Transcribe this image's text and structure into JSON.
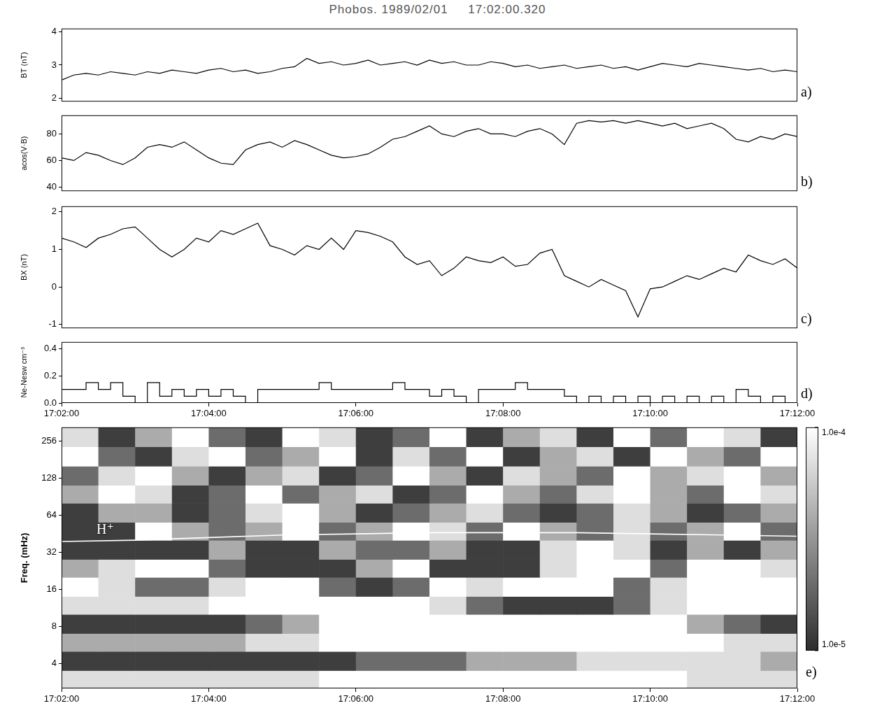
{
  "title": "Phobos. 1989/02/01     17:02:00.320",
  "chart_data": [
    {
      "type": "line",
      "panel": "a)",
      "ylabel": "BT (nT)",
      "color": "#000000",
      "tick_labels": "y",
      "xlim": [
        "17:02:00",
        "17:12:00"
      ],
      "ylim": [
        1.9,
        4.1
      ],
      "yticks": [
        2,
        3,
        4
      ],
      "x": [
        "17:02:00",
        "17:02:10",
        "17:02:20",
        "17:02:30",
        "17:02:40",
        "17:02:50",
        "17:03:00",
        "17:03:10",
        "17:03:20",
        "17:03:30",
        "17:03:40",
        "17:03:50",
        "17:04:00",
        "17:04:10",
        "17:04:20",
        "17:04:30",
        "17:04:40",
        "17:04:50",
        "17:05:00",
        "17:05:10",
        "17:05:20",
        "17:05:30",
        "17:05:40",
        "17:05:50",
        "17:06:00",
        "17:06:10",
        "17:06:20",
        "17:06:30",
        "17:06:40",
        "17:06:50",
        "17:07:00",
        "17:07:10",
        "17:07:20",
        "17:07:30",
        "17:07:40",
        "17:07:50",
        "17:08:00",
        "17:08:10",
        "17:08:20",
        "17:08:30",
        "17:08:40",
        "17:08:50",
        "17:09:00",
        "17:09:10",
        "17:09:20",
        "17:09:30",
        "17:09:40",
        "17:09:50",
        "17:10:00",
        "17:10:10",
        "17:10:20",
        "17:10:30",
        "17:10:40",
        "17:10:50",
        "17:11:00",
        "17:11:10",
        "17:11:20",
        "17:11:30",
        "17:11:40",
        "17:11:50",
        "17:12:00"
      ],
      "values": [
        2.55,
        2.7,
        2.75,
        2.7,
        2.8,
        2.75,
        2.7,
        2.8,
        2.75,
        2.85,
        2.8,
        2.75,
        2.85,
        2.9,
        2.8,
        2.85,
        2.75,
        2.8,
        2.9,
        2.95,
        3.2,
        3.05,
        3.1,
        3.0,
        3.05,
        3.15,
        3.0,
        3.05,
        3.1,
        3.0,
        3.15,
        3.05,
        3.1,
        3.0,
        3.0,
        3.1,
        3.05,
        2.95,
        3.0,
        2.9,
        2.95,
        3.0,
        2.9,
        2.95,
        3.0,
        2.9,
        2.95,
        2.85,
        2.95,
        3.05,
        3.0,
        2.95,
        3.05,
        3.0,
        2.95,
        2.9,
        2.85,
        2.9,
        2.8,
        2.85,
        2.8
      ]
    },
    {
      "type": "line",
      "panel": "b)",
      "ylabel": "acos(V·B)",
      "color": "#000000",
      "tick_labels": "y",
      "xlim": [
        "17:02:00",
        "17:12:00"
      ],
      "ylim": [
        37,
        94
      ],
      "yticks": [
        40,
        60,
        80
      ],
      "x": [
        "17:02:00",
        "17:02:10",
        "17:02:20",
        "17:02:30",
        "17:02:40",
        "17:02:50",
        "17:03:00",
        "17:03:10",
        "17:03:20",
        "17:03:30",
        "17:03:40",
        "17:03:50",
        "17:04:00",
        "17:04:10",
        "17:04:20",
        "17:04:30",
        "17:04:40",
        "17:04:50",
        "17:05:00",
        "17:05:10",
        "17:05:20",
        "17:05:30",
        "17:05:40",
        "17:05:50",
        "17:06:00",
        "17:06:10",
        "17:06:20",
        "17:06:30",
        "17:06:40",
        "17:06:50",
        "17:07:00",
        "17:07:10",
        "17:07:20",
        "17:07:30",
        "17:07:40",
        "17:07:50",
        "17:08:00",
        "17:08:10",
        "17:08:20",
        "17:08:30",
        "17:08:40",
        "17:08:50",
        "17:09:00",
        "17:09:10",
        "17:09:20",
        "17:09:30",
        "17:09:40",
        "17:09:50",
        "17:10:00",
        "17:10:10",
        "17:10:20",
        "17:10:30",
        "17:10:40",
        "17:10:50",
        "17:11:00",
        "17:11:10",
        "17:11:20",
        "17:11:30",
        "17:11:40",
        "17:11:50",
        "17:12:00"
      ],
      "values": [
        62,
        60,
        66,
        64,
        60,
        57,
        62,
        70,
        72,
        70,
        74,
        68,
        62,
        58,
        57,
        68,
        72,
        74,
        70,
        75,
        72,
        68,
        64,
        62,
        63,
        65,
        70,
        76,
        78,
        82,
        86,
        80,
        78,
        82,
        84,
        80,
        80,
        78,
        82,
        84,
        80,
        72,
        88,
        90,
        89,
        90,
        88,
        90,
        88,
        86,
        88,
        84,
        86,
        88,
        84,
        76,
        74,
        78,
        76,
        80,
        78
      ]
    },
    {
      "type": "line",
      "panel": "c)",
      "ylabel": "BX (nT)",
      "color": "#000000",
      "tick_labels": "y",
      "xlim": [
        "17:02:00",
        "17:12:00"
      ],
      "ylim": [
        -1.1,
        2.15
      ],
      "yticks": [
        -1,
        0,
        1,
        2
      ],
      "x": [
        "17:02:00",
        "17:02:10",
        "17:02:20",
        "17:02:30",
        "17:02:40",
        "17:02:50",
        "17:03:00",
        "17:03:10",
        "17:03:20",
        "17:03:30",
        "17:03:40",
        "17:03:50",
        "17:04:00",
        "17:04:10",
        "17:04:20",
        "17:04:30",
        "17:04:40",
        "17:04:50",
        "17:05:00",
        "17:05:10",
        "17:05:20",
        "17:05:30",
        "17:05:40",
        "17:05:50",
        "17:06:00",
        "17:06:10",
        "17:06:20",
        "17:06:30",
        "17:06:40",
        "17:06:50",
        "17:07:00",
        "17:07:10",
        "17:07:20",
        "17:07:30",
        "17:07:40",
        "17:07:50",
        "17:08:00",
        "17:08:10",
        "17:08:20",
        "17:08:30",
        "17:08:40",
        "17:08:50",
        "17:09:00",
        "17:09:10",
        "17:09:20",
        "17:09:30",
        "17:09:40",
        "17:09:50",
        "17:10:00",
        "17:10:10",
        "17:10:20",
        "17:10:30",
        "17:10:40",
        "17:10:50",
        "17:11:00",
        "17:11:10",
        "17:11:20",
        "17:11:30",
        "17:11:40",
        "17:11:50",
        "17:12:00"
      ],
      "values": [
        1.3,
        1.2,
        1.05,
        1.3,
        1.4,
        1.55,
        1.6,
        1.3,
        1.0,
        0.8,
        1.0,
        1.3,
        1.2,
        1.5,
        1.4,
        1.55,
        1.7,
        1.1,
        1.0,
        0.85,
        1.1,
        1.0,
        1.3,
        1.0,
        1.5,
        1.45,
        1.35,
        1.2,
        0.8,
        0.6,
        0.7,
        0.3,
        0.5,
        0.8,
        0.7,
        0.65,
        0.8,
        0.55,
        0.6,
        0.9,
        1.0,
        0.3,
        0.15,
        0.0,
        0.2,
        0.05,
        -0.1,
        -0.8,
        -0.05,
        0.0,
        0.15,
        0.3,
        0.2,
        0.35,
        0.5,
        0.4,
        0.85,
        0.7,
        0.6,
        0.75,
        0.5
      ]
    },
    {
      "type": "line",
      "panel": "d)",
      "ylabel": "Ne-Nesw cm⁻³",
      "color": "#000000",
      "line_style": "stepped",
      "xlim": [
        "17:02:00",
        "17:12:00"
      ],
      "ylim": [
        0,
        0.45
      ],
      "yticks": [
        {
          "value": 0,
          "label": "0.0"
        },
        {
          "value": 0.2,
          "label": "0.2"
        },
        {
          "value": 0.4,
          "label": "0.4"
        }
      ],
      "xticks": [
        "17:02:00",
        "17:04:00",
        "17:06:00",
        "17:08:00",
        "17:10:00",
        "17:12:00"
      ],
      "x": [
        "17:02:00",
        "17:02:10",
        "17:02:20",
        "17:02:30",
        "17:02:40",
        "17:02:50",
        "17:03:00",
        "17:03:10",
        "17:03:20",
        "17:03:30",
        "17:03:40",
        "17:03:50",
        "17:04:00",
        "17:04:10",
        "17:04:20",
        "17:04:30",
        "17:04:40",
        "17:04:50",
        "17:05:00",
        "17:05:10",
        "17:05:20",
        "17:05:30",
        "17:05:40",
        "17:05:50",
        "17:06:00",
        "17:06:10",
        "17:06:20",
        "17:06:30",
        "17:06:40",
        "17:06:50",
        "17:07:00",
        "17:07:10",
        "17:07:20",
        "17:07:30",
        "17:07:40",
        "17:07:50",
        "17:08:00",
        "17:08:10",
        "17:08:20",
        "17:08:30",
        "17:08:40",
        "17:08:50",
        "17:09:00",
        "17:09:10",
        "17:09:20",
        "17:09:30",
        "17:09:40",
        "17:09:50",
        "17:10:00",
        "17:10:10",
        "17:10:20",
        "17:10:30",
        "17:10:40",
        "17:10:50",
        "17:11:00",
        "17:11:10",
        "17:11:20",
        "17:11:30",
        "17:11:40",
        "17:11:50",
        "17:12:00"
      ],
      "values": [
        0.1,
        0.1,
        0.15,
        0.1,
        0.15,
        0.05,
        0.0,
        0.15,
        0.05,
        0.1,
        0.05,
        0.1,
        0.05,
        0.1,
        0.05,
        0.0,
        0.1,
        0.1,
        0.1,
        0.1,
        0.1,
        0.15,
        0.1,
        0.1,
        0.1,
        0.1,
        0.1,
        0.15,
        0.1,
        0.1,
        0.05,
        0.1,
        0.05,
        0.0,
        0.1,
        0.1,
        0.1,
        0.15,
        0.1,
        0.1,
        0.1,
        0.05,
        0.0,
        0.05,
        0.0,
        0.05,
        0.0,
        0.05,
        0.0,
        0.05,
        0.0,
        0.05,
        0.0,
        0.05,
        0.0,
        0.1,
        0.05,
        0.0,
        0.05,
        0.0,
        0.05
      ]
    },
    {
      "type": "heatmap",
      "panel": "e)",
      "ylabel": "Freq. (mHz)",
      "log": "y",
      "xlim": [
        "17:02:00",
        "17:12:00"
      ],
      "xticks": [
        "17:02:00",
        "17:04:00",
        "17:06:00",
        "17:08:00",
        "17:10:00",
        "17:12:00"
      ],
      "ylim": [
        2.5,
        330
      ],
      "yticks": [
        4,
        8,
        16,
        32,
        64,
        128,
        256
      ],
      "x_edges": [
        "17:02:00",
        "17:02:30",
        "17:03:00",
        "17:03:30",
        "17:04:00",
        "17:04:30",
        "17:05:00",
        "17:05:30",
        "17:06:00",
        "17:06:30",
        "17:07:00",
        "17:07:30",
        "17:08:00",
        "17:08:30",
        "17:09:00",
        "17:09:30",
        "17:10:00",
        "17:10:30",
        "17:11:00",
        "17:11:30",
        "17:12:00"
      ],
      "y_edges": [
        2.5,
        3.5,
        5,
        7,
        10,
        14,
        20,
        28,
        40,
        56,
        80,
        112,
        160,
        230,
        330
      ],
      "cells": [
        [
          7e-05,
          7e-05,
          7e-05,
          7e-05,
          7e-05,
          7e-05,
          7e-05,
          0.0001,
          0.0001,
          0.0001,
          0.0001,
          0.0001,
          0.0001,
          0.0001,
          0.0001,
          0.0001,
          0.0001,
          7e-05,
          7e-05,
          7e-05
        ],
        [
          1.2e-05,
          1.2e-05,
          1.2e-05,
          1.2e-05,
          1.2e-05,
          1.2e-05,
          1.2e-05,
          1.2e-05,
          2e-05,
          2e-05,
          2e-05,
          4e-05,
          4e-05,
          4e-05,
          7e-05,
          7e-05,
          7e-05,
          7e-05,
          7e-05,
          4e-05
        ],
        [
          4e-05,
          4e-05,
          4e-05,
          4e-05,
          4e-05,
          7e-05,
          7e-05,
          0.0001,
          0.0001,
          0.0001,
          0.0001,
          0.0001,
          0.0001,
          0.0001,
          0.0001,
          0.0001,
          0.0001,
          0.0001,
          7e-05,
          7e-05
        ],
        [
          1.2e-05,
          1.2e-05,
          1.2e-05,
          1.2e-05,
          1.2e-05,
          2e-05,
          4e-05,
          0.0001,
          0.0001,
          0.0001,
          0.0001,
          0.0001,
          0.0001,
          0.0001,
          0.0001,
          0.0001,
          0.0001,
          4e-05,
          2e-05,
          1.2e-05
        ],
        [
          7e-05,
          7e-05,
          7e-05,
          7e-05,
          0.0001,
          0.0001,
          0.0001,
          0.0001,
          0.0001,
          0.0001,
          7e-05,
          2e-05,
          1.2e-05,
          1.2e-05,
          1.2e-05,
          2e-05,
          7e-05,
          0.0001,
          0.0001,
          0.0001
        ],
        [
          0.0001,
          7e-05,
          2e-05,
          2e-05,
          7e-05,
          0.0001,
          0.0001,
          2e-05,
          1.2e-05,
          2e-05,
          0.0001,
          7e-05,
          0.0001,
          0.0001,
          0.0001,
          2e-05,
          7e-05,
          0.0001,
          0.0001,
          0.0001
        ],
        [
          4e-05,
          7e-05,
          0.0001,
          0.0001,
          2e-05,
          1.2e-05,
          1.2e-05,
          1.2e-05,
          4e-05,
          0.0001,
          1.2e-05,
          1.2e-05,
          1.2e-05,
          7e-05,
          0.0001,
          0.0001,
          2e-05,
          0.0001,
          0.0001,
          7e-05
        ],
        [
          1.2e-05,
          1.2e-05,
          1.2e-05,
          1.2e-05,
          4e-05,
          1.2e-05,
          1.2e-05,
          4e-05,
          2e-05,
          2e-05,
          4e-05,
          1.2e-05,
          1.2e-05,
          7e-05,
          0.0001,
          7e-05,
          1.2e-05,
          4e-05,
          1.2e-05,
          4e-05
        ],
        [
          1.2e-05,
          1.2e-05,
          0.0001,
          4e-05,
          2e-05,
          4e-05,
          0.0001,
          2e-05,
          4e-05,
          0.0001,
          7e-05,
          2e-05,
          0.0001,
          4e-05,
          2e-05,
          7e-05,
          2e-05,
          4e-05,
          0.0001,
          2e-05
        ],
        [
          1.2e-05,
          4e-05,
          4e-05,
          1.2e-05,
          2e-05,
          7e-05,
          0.0001,
          4e-05,
          1.2e-05,
          2e-05,
          4e-05,
          7e-05,
          2e-05,
          1.2e-05,
          2e-05,
          7e-05,
          4e-05,
          1.2e-05,
          2e-05,
          4e-05
        ],
        [
          4e-05,
          0.0001,
          7e-05,
          1.2e-05,
          2e-05,
          0.0001,
          2e-05,
          4e-05,
          7e-05,
          1.2e-05,
          2e-05,
          0.0001,
          4e-05,
          2e-05,
          7e-05,
          0.0001,
          4e-05,
          2e-05,
          0.0001,
          7e-05
        ],
        [
          2e-05,
          7e-05,
          0.0001,
          4e-05,
          1.2e-05,
          4e-05,
          7e-05,
          1.2e-05,
          2e-05,
          0.0001,
          4e-05,
          1.2e-05,
          7e-05,
          4e-05,
          2e-05,
          0.0001,
          4e-05,
          7e-05,
          0.0001,
          4e-05
        ],
        [
          0.0001,
          2e-05,
          1.2e-05,
          7e-05,
          0.0001,
          2e-05,
          4e-05,
          0.0001,
          1.2e-05,
          7e-05,
          2e-05,
          0.0001,
          1.2e-05,
          4e-05,
          7e-05,
          1.2e-05,
          0.0001,
          4e-05,
          2e-05,
          0.0001
        ],
        [
          7e-05,
          1.2e-05,
          4e-05,
          0.0001,
          2e-05,
          1.2e-05,
          0.0001,
          7e-05,
          1.2e-05,
          2e-05,
          0.0001,
          1.2e-05,
          4e-05,
          7e-05,
          1.2e-05,
          0.0001,
          2e-05,
          0.0001,
          7e-05,
          1.2e-05
        ]
      ],
      "colorbar": {
        "range": [
          1e-05,
          0.0001
        ],
        "ticks": [
          {
            "value": 1e-05,
            "label": "1.0e-5"
          },
          {
            "value": 0.0001,
            "label": "1.0e-4"
          }
        ]
      },
      "series": [
        {
          "name": "H⁺",
          "color": "#ffffff",
          "x": [
            "17:02:00",
            "17:03:00",
            "17:04:00",
            "17:05:00",
            "17:06:00",
            "17:07:00",
            "17:08:00",
            "17:09:00",
            "17:10:00",
            "17:11:00",
            "17:12:00"
          ],
          "values": [
            39,
            40,
            42,
            44,
            45,
            46,
            46,
            46,
            45,
            44,
            43
          ]
        }
      ]
    }
  ]
}
